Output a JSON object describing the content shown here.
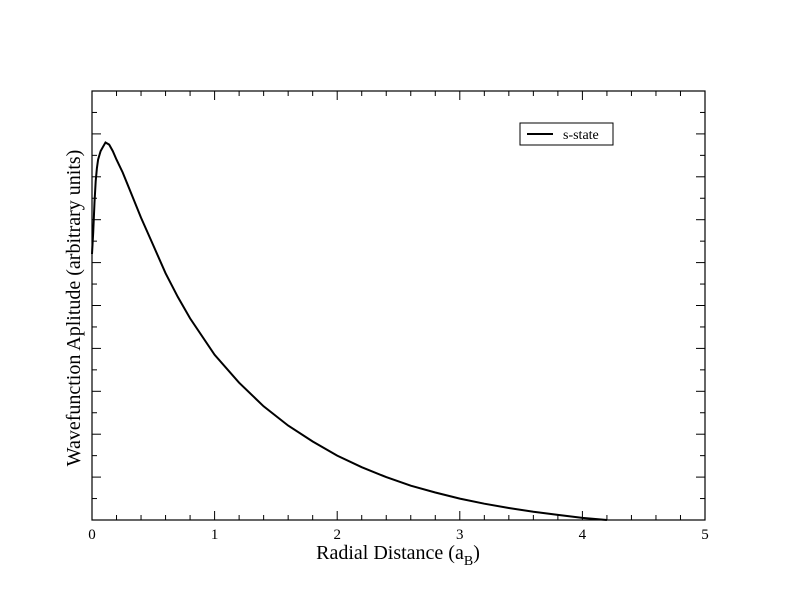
{
  "chart_data": {
    "type": "line",
    "title": "",
    "xlabel_main": "Radial Distance (a",
    "xlabel_sub": "B",
    "xlabel_close": ")",
    "ylabel": "Wavefunction Aplitude  (arbitrary units)",
    "xlim": [
      0,
      5
    ],
    "ylim": [
      0,
      1
    ],
    "x_ticks": [
      "0",
      "1",
      "2",
      "3",
      "4",
      "5"
    ],
    "grid": false,
    "legend_position": "top-right",
    "series": [
      {
        "name": "s-state",
        "color": "#000000",
        "points": [
          [
            0.0,
            0.62
          ],
          [
            0.01,
            0.67
          ],
          [
            0.02,
            0.74
          ],
          [
            0.03,
            0.79
          ],
          [
            0.04,
            0.82
          ],
          [
            0.05,
            0.84
          ],
          [
            0.07,
            0.86
          ],
          [
            0.09,
            0.87
          ],
          [
            0.11,
            0.88
          ],
          [
            0.14,
            0.875
          ],
          [
            0.17,
            0.86
          ],
          [
            0.2,
            0.84
          ],
          [
            0.25,
            0.81
          ],
          [
            0.3,
            0.775
          ],
          [
            0.4,
            0.705
          ],
          [
            0.5,
            0.64
          ],
          [
            0.6,
            0.575
          ],
          [
            0.7,
            0.52
          ],
          [
            0.8,
            0.47
          ],
          [
            1.0,
            0.385
          ],
          [
            1.2,
            0.32
          ],
          [
            1.4,
            0.265
          ],
          [
            1.6,
            0.22
          ],
          [
            1.8,
            0.183
          ],
          [
            2.0,
            0.15
          ],
          [
            2.2,
            0.123
          ],
          [
            2.4,
            0.1
          ],
          [
            2.6,
            0.08
          ],
          [
            2.8,
            0.064
          ],
          [
            3.0,
            0.05
          ],
          [
            3.2,
            0.038
          ],
          [
            3.4,
            0.028
          ],
          [
            3.6,
            0.019
          ],
          [
            3.8,
            0.012
          ],
          [
            4.0,
            0.005
          ],
          [
            4.2,
            0.0
          ]
        ]
      }
    ]
  }
}
